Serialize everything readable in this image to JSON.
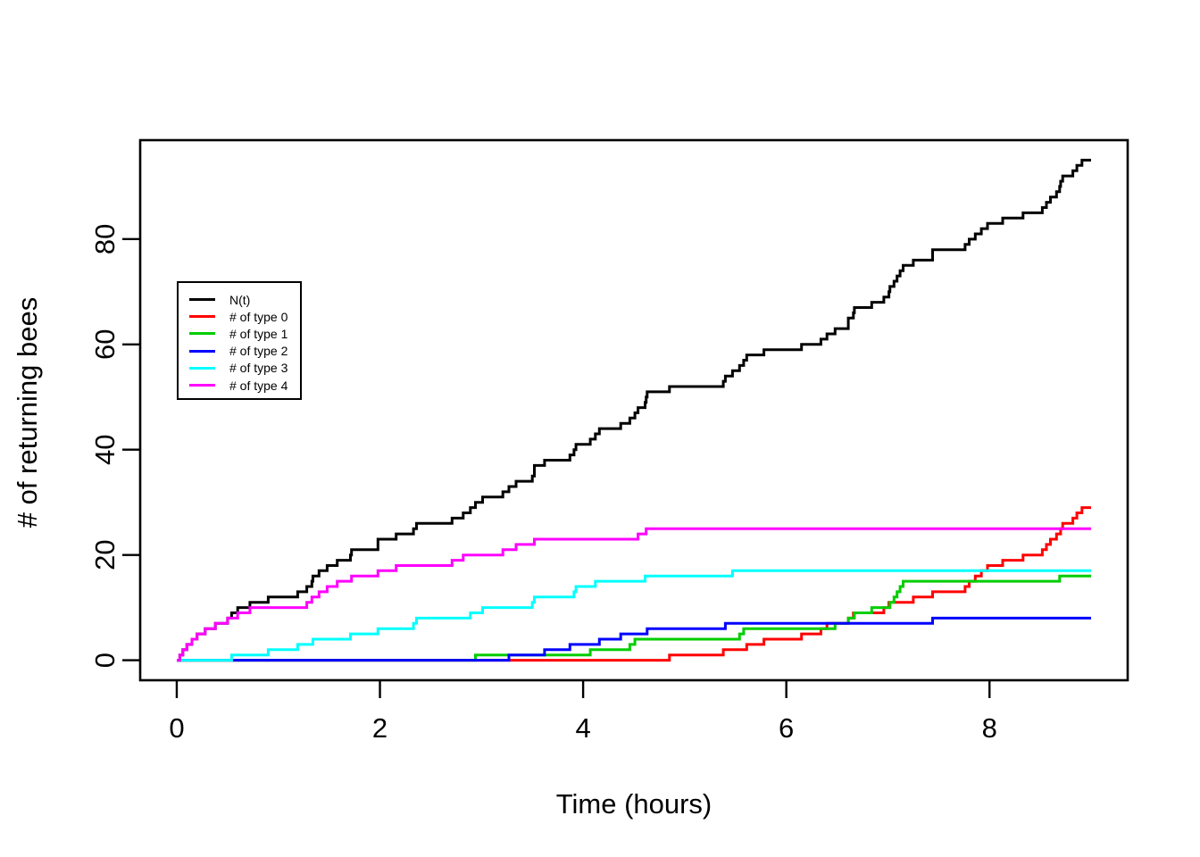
{
  "figure": {
    "background": "#ffffff"
  },
  "chart_data": {
    "type": "line",
    "subtype": "step",
    "title": "",
    "xlabel": "Time (hours)",
    "ylabel": "# of returning bees",
    "xlim": [
      0,
      9
    ],
    "ylim": [
      0,
      95
    ],
    "x_ticks": [
      0,
      2,
      4,
      6,
      8
    ],
    "y_ticks": [
      0,
      20,
      40,
      60,
      80
    ],
    "axis_expansion": 0.04,
    "grid": false,
    "legend_position": "left-center",
    "t_start": 0,
    "t_end": 9,
    "series": [
      {
        "name": "N(t)",
        "color": "#000000",
        "start_value": 0,
        "final_value": 95,
        "derived_sum_of_types": true,
        "jump_times": []
      },
      {
        "name": "# of type 0",
        "color": "#FF0000",
        "start_value": 0,
        "final_value": 29,
        "jump_times": [
          4.85,
          5.38,
          5.61,
          5.78,
          6.15,
          6.34,
          6.4,
          6.61,
          6.66,
          6.96,
          7.01,
          7.25,
          7.44,
          7.76,
          7.8,
          7.86,
          7.92,
          7.98,
          8.13,
          8.33,
          8.52,
          8.56,
          8.6,
          8.66,
          8.7,
          8.72,
          8.82,
          8.86,
          8.91
        ]
      },
      {
        "name": "# of type 1",
        "color": "#00CD00",
        "start_value": 0,
        "final_value": 16,
        "jump_times": [
          2.94,
          4.07,
          4.46,
          4.51,
          5.54,
          5.58,
          6.48,
          6.61,
          6.67,
          6.84,
          7.02,
          7.06,
          7.09,
          7.12,
          7.15,
          8.69
        ]
      },
      {
        "name": "# of type 2",
        "color": "#0000FF",
        "start_value": 0,
        "final_value": 8,
        "jump_times": [
          3.27,
          3.62,
          3.87,
          4.16,
          4.37,
          4.63,
          5.4,
          7.44
        ]
      },
      {
        "name": "# of type 3",
        "color": "#00FFFF",
        "start_value": 0,
        "final_value": 17,
        "jump_times": [
          0.54,
          0.9,
          1.19,
          1.34,
          1.71,
          1.98,
          2.33,
          2.36,
          2.89,
          3.01,
          3.5,
          3.52,
          3.91,
          3.93,
          4.12,
          4.61,
          5.47
        ]
      },
      {
        "name": "# of type 4",
        "color": "#FF00FF",
        "start_value": 0,
        "final_value": 25,
        "jump_times": [
          0.03,
          0.06,
          0.1,
          0.15,
          0.2,
          0.28,
          0.38,
          0.5,
          0.6,
          0.72,
          1.28,
          1.33,
          1.4,
          1.48,
          1.58,
          1.72,
          1.98,
          2.16,
          2.71,
          2.82,
          3.21,
          3.34,
          3.52,
          4.54,
          4.62
        ]
      }
    ],
    "legend_entries": [
      "N(t)",
      "# of type 0",
      "# of type 1",
      "# of type 2",
      "# of type 3",
      "# of type 4"
    ]
  }
}
